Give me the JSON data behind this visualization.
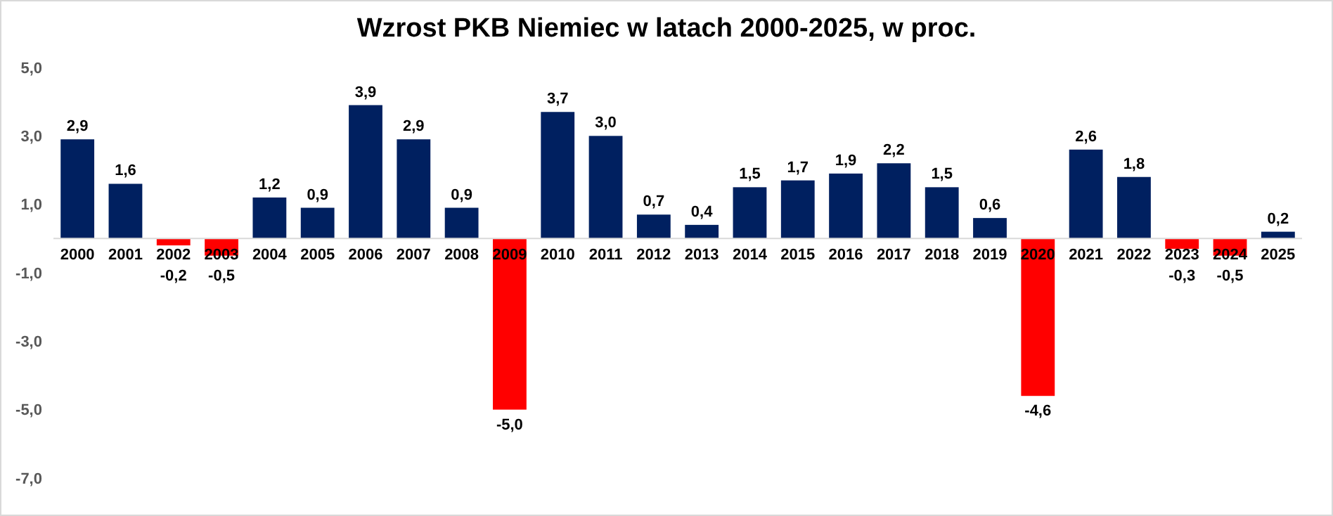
{
  "chart_data": {
    "type": "bar",
    "title": "Wzrost PKB Niemiec w latach 2000-2025, w proc.",
    "categories": [
      "2000",
      "2001",
      "2002",
      "2003",
      "2004",
      "2005",
      "2006",
      "2007",
      "2008",
      "2009",
      "2010",
      "2011",
      "2012",
      "2013",
      "2014",
      "2015",
      "2016",
      "2017",
      "2018",
      "2019",
      "2020",
      "2021",
      "2022",
      "2023",
      "2024",
      "2025"
    ],
    "values": [
      2.9,
      1.6,
      -0.2,
      -0.5,
      1.2,
      0.9,
      3.9,
      2.9,
      0.9,
      -5.0,
      3.7,
      3.0,
      0.7,
      0.4,
      1.5,
      1.7,
      1.9,
      2.2,
      1.5,
      0.6,
      -4.6,
      2.6,
      1.8,
      -0.3,
      -0.5,
      0.2
    ],
    "colors": [
      "#002060",
      "#002060",
      "#ff0000",
      "#ff0000",
      "#002060",
      "#002060",
      "#002060",
      "#002060",
      "#002060",
      "#ff0000",
      "#002060",
      "#002060",
      "#002060",
      "#002060",
      "#002060",
      "#002060",
      "#002060",
      "#002060",
      "#002060",
      "#002060",
      "#ff0000",
      "#002060",
      "#002060",
      "#ff0000",
      "#ff0000",
      "#002060"
    ],
    "value_labels": [
      "2,9",
      "1,6",
      "-0,2",
      "-0,5",
      "1,2",
      "0,9",
      "3,9",
      "2,9",
      "0,9",
      "-5,0",
      "3,7",
      "3,0",
      "0,7",
      "0,4",
      "1,5",
      "1,7",
      "1,9",
      "2,2",
      "1,5",
      "0,6",
      "-4,6",
      "2,6",
      "1,8",
      "-0,3",
      "-0,5",
      "0,2"
    ],
    "ylim": [
      -7,
      5
    ],
    "yticks": [
      {
        "value": -7,
        "label": "-7,0"
      },
      {
        "value": -5,
        "label": "-5,0"
      },
      {
        "value": -3,
        "label": "-3,0"
      },
      {
        "value": -1,
        "label": "-1,0"
      },
      {
        "value": 1,
        "label": "1,0"
      },
      {
        "value": 3,
        "label": "3,0"
      },
      {
        "value": 5,
        "label": "5,0"
      }
    ],
    "grid": false
  }
}
